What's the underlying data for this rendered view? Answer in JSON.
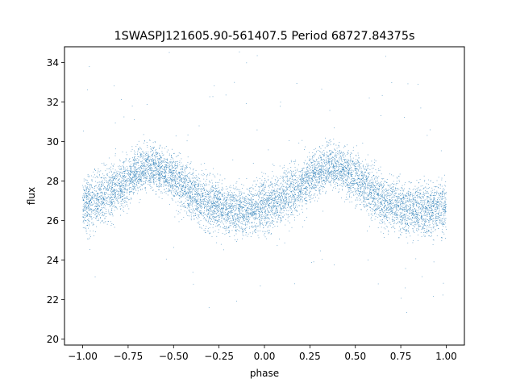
{
  "chart_data": {
    "type": "scatter",
    "title": "1SWASPJ121605.90-561407.5 Period 68727.84375s",
    "xlabel": "phase",
    "ylabel": "flux",
    "xlim": [
      -1.1,
      1.1
    ],
    "ylim": [
      19.7,
      34.8
    ],
    "grid": false,
    "legend": "none",
    "marker_color": "#1f77b4",
    "x_ticks": [
      {
        "value": -1.0,
        "label": "−1.00"
      },
      {
        "value": -0.75,
        "label": "−0.75"
      },
      {
        "value": -0.5,
        "label": "−0.50"
      },
      {
        "value": -0.25,
        "label": "−0.25"
      },
      {
        "value": 0.0,
        "label": "0.00"
      },
      {
        "value": 0.25,
        "label": "0.25"
      },
      {
        "value": 0.5,
        "label": "0.50"
      },
      {
        "value": 0.75,
        "label": "0.75"
      },
      {
        "value": 1.0,
        "label": "1.00"
      }
    ],
    "y_ticks": [
      {
        "value": 20,
        "label": "20"
      },
      {
        "value": 22,
        "label": "22"
      },
      {
        "value": 24,
        "label": "24"
      },
      {
        "value": 26,
        "label": "26"
      },
      {
        "value": 28,
        "label": "28"
      },
      {
        "value": 30,
        "label": "30"
      },
      {
        "value": 32,
        "label": "32"
      },
      {
        "value": 34,
        "label": "34"
      }
    ],
    "series": [
      {
        "x": [
          -1.0,
          -0.95,
          -0.9,
          -0.85,
          -0.8,
          -0.75,
          -0.7,
          -0.65,
          -0.6,
          -0.55,
          -0.5,
          -0.45,
          -0.4,
          -0.35,
          -0.3,
          -0.25,
          -0.2,
          -0.15,
          -0.1,
          -0.05,
          0.0,
          0.05,
          0.1,
          0.15,
          0.2,
          0.25,
          0.3,
          0.35,
          0.4,
          0.45,
          0.5,
          0.55,
          0.6,
          0.65,
          0.7,
          0.75,
          0.8,
          0.85,
          0.9,
          0.95,
          1.0
        ],
        "y": [
          26.8,
          27.0,
          27.2,
          27.4,
          27.7,
          28.1,
          28.5,
          28.7,
          28.7,
          28.5,
          28.2,
          27.8,
          27.4,
          27.0,
          26.8,
          26.7,
          26.6,
          26.5,
          26.5,
          26.6,
          26.8,
          27.0,
          27.2,
          27.4,
          27.7,
          28.1,
          28.5,
          28.7,
          28.7,
          28.5,
          28.2,
          27.8,
          27.4,
          27.0,
          26.8,
          26.7,
          26.6,
          26.5,
          26.5,
          26.6,
          26.8
        ],
        "scatter": [
          1.3,
          1.3,
          1.3,
          1.3,
          1.2,
          1.2,
          1.1,
          1.1,
          1.1,
          1.1,
          1.2,
          1.2,
          1.3,
          1.3,
          1.3,
          1.3,
          1.2,
          1.2,
          1.2,
          1.2,
          1.3,
          1.3,
          1.3,
          1.3,
          1.2,
          1.2,
          1.1,
          1.1,
          1.1,
          1.1,
          1.2,
          1.2,
          1.3,
          1.3,
          1.3,
          1.3,
          1.2,
          1.2,
          1.2,
          1.2,
          1.3
        ]
      }
    ]
  }
}
